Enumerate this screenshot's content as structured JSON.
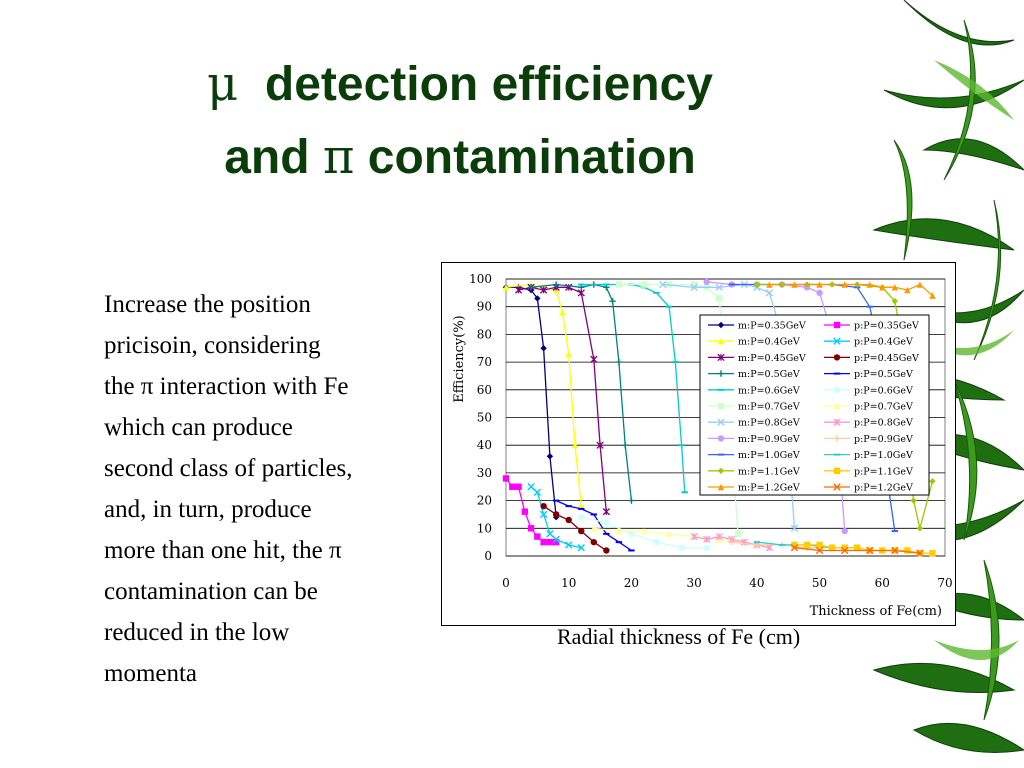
{
  "slide": {
    "title_line1_greek": "μ",
    "title_line1_text": "detection efficiency",
    "title_line2_text_a": "and",
    "title_line2_greek": "π",
    "title_line2_text_b": "contamination",
    "body_lines": [
      "Increase  the position",
      "pricisoin,  considering",
      "the π interaction with Fe",
      "which  can produce",
      "second class of particles,",
      "and, in turn,  produce",
      "more than one hit, the π",
      "contamination can be",
      "reduced  in the low",
      "momenta"
    ],
    "caption": "Radial thickness of Fe (cm)",
    "background_decoration": "bamboo-leaves"
  },
  "chart_data": {
    "type": "line",
    "title": "",
    "xlabel": "Thickness of Fe(cm)",
    "ylabel": "Efficiency(%)",
    "xlim": [
      0,
      70
    ],
    "ylim": [
      0,
      100
    ],
    "xticks": [
      "0",
      "10",
      "20",
      "30",
      "40",
      "50",
      "60",
      "70"
    ],
    "yticks": [
      "0",
      "10",
      "20",
      "30",
      "40",
      "50",
      "60",
      "70",
      "80",
      "90",
      "100"
    ],
    "grid": "horizontal",
    "legend_position": "right",
    "series": [
      {
        "name": "m:P=0.35GeV",
        "color": "#000080",
        "marker": "diamond",
        "x": [
          0,
          2,
          4,
          5,
          6,
          7,
          8
        ],
        "y": [
          97,
          97,
          96,
          93,
          75,
          36,
          14
        ]
      },
      {
        "name": "p:P=0.35GeV",
        "color": "#ff00ff",
        "marker": "square",
        "x": [
          0,
          1,
          2,
          3,
          4,
          5,
          6,
          7,
          8
        ],
        "y": [
          28,
          25,
          25,
          16,
          10,
          7,
          5,
          5,
          5
        ]
      },
      {
        "name": "m:P=0.4GeV",
        "color": "#ffff00",
        "marker": "triangle",
        "x": [
          0,
          4,
          8,
          9,
          10,
          11,
          12
        ],
        "y": [
          97,
          98,
          96,
          88,
          73,
          40,
          18
        ]
      },
      {
        "name": "p:P=0.4GeV",
        "color": "#00ccff",
        "marker": "cross",
        "x": [
          4,
          5,
          6,
          7,
          8,
          10,
          12
        ],
        "y": [
          25,
          23,
          15,
          8,
          6,
          4,
          3
        ]
      },
      {
        "name": "m:P=0.45GeV",
        "color": "#800080",
        "marker": "asterisk",
        "x": [
          2,
          4,
          6,
          8,
          10,
          12,
          14,
          15,
          16
        ],
        "y": [
          96,
          97,
          96,
          97,
          97,
          95,
          71,
          40,
          16
        ]
      },
      {
        "name": "p:P=0.45GeV",
        "color": "#800000",
        "marker": "circle",
        "x": [
          6,
          8,
          10,
          12,
          14,
          16
        ],
        "y": [
          18,
          15,
          13,
          9,
          5,
          2
        ]
      },
      {
        "name": "m:P=0.5GeV",
        "color": "#008080",
        "marker": "plus",
        "x": [
          4,
          8,
          12,
          14,
          16,
          17,
          18,
          19,
          20
        ],
        "y": [
          97,
          98,
          97,
          98,
          97,
          92,
          70,
          40,
          20
        ]
      },
      {
        "name": "p:P=0.5GeV",
        "color": "#0000ff",
        "marker": "dash",
        "x": [
          8,
          10,
          12,
          14,
          16,
          18,
          20
        ],
        "y": [
          20,
          18,
          17,
          15,
          8,
          5,
          2
        ]
      },
      {
        "name": "m:P=0.6GeV",
        "color": "#00cccc",
        "marker": "dash",
        "x": [
          12,
          16,
          20,
          22,
          24,
          26,
          27,
          28,
          28.5
        ],
        "y": [
          98,
          98,
          98,
          97,
          95,
          90,
          70,
          40,
          23
        ]
      },
      {
        "name": "p:P=0.6GeV",
        "color": "#ccffff",
        "marker": "circle",
        "x": [
          12,
          16,
          20,
          24,
          28,
          32
        ],
        "y": [
          14,
          12,
          8,
          5,
          3,
          3
        ]
      },
      {
        "name": "m:P=0.7GeV",
        "color": "#ccffcc",
        "marker": "square",
        "x": [
          18,
          22,
          26,
          30,
          32,
          34,
          35,
          36,
          37
        ],
        "y": [
          98,
          98,
          98,
          98,
          97,
          93,
          70,
          40,
          8
        ]
      },
      {
        "name": "p:P=0.7GeV",
        "color": "#ffff99",
        "marker": "triangle",
        "x": [
          14,
          18,
          22,
          26,
          30,
          34,
          38
        ],
        "y": [
          10,
          9,
          9,
          8,
          7,
          6,
          5
        ]
      },
      {
        "name": "m:P=0.8GeV",
        "color": "#99ccff",
        "marker": "cross",
        "x": [
          25,
          30,
          34,
          38,
          40,
          42,
          44,
          45,
          46
        ],
        "y": [
          98,
          97,
          97,
          98,
          97,
          95,
          80,
          40,
          10
        ]
      },
      {
        "name": "p:P=0.8GeV",
        "color": "#ff99cc",
        "marker": "asterisk",
        "x": [
          30,
          32,
          34,
          36,
          38,
          40,
          42
        ],
        "y": [
          7,
          6,
          7,
          6,
          5,
          4,
          3
        ]
      },
      {
        "name": "m:P=0.9GeV",
        "color": "#cc99ff",
        "marker": "circle",
        "x": [
          32,
          36,
          40,
          44,
          48,
          50,
          52,
          53,
          54
        ],
        "y": [
          99,
          98,
          98,
          98,
          97,
          95,
          80,
          40,
          9
        ]
      },
      {
        "name": "p:P=0.9GeV",
        "color": "#ffcc99",
        "marker": "plus",
        "x": [
          36,
          40,
          44,
          48,
          52
        ],
        "y": [
          5,
          4,
          4,
          3,
          3
        ]
      },
      {
        "name": "m:P=1.0GeV",
        "color": "#3366ff",
        "marker": "dash",
        "x": [
          36,
          40,
          44,
          48,
          52,
          56,
          58,
          59,
          60,
          62
        ],
        "y": [
          98,
          98,
          98,
          98,
          98,
          97,
          90,
          80,
          40,
          9
        ]
      },
      {
        "name": "p:P=1.0GeV",
        "color": "#33cccc",
        "marker": "dash",
        "x": [
          40,
          44,
          48,
          52,
          56
        ],
        "y": [
          5,
          4,
          4,
          3,
          3
        ]
      },
      {
        "name": "m:P=1.1GeV",
        "color": "#99cc00",
        "marker": "diamond",
        "x": [
          40,
          44,
          48,
          52,
          56,
          60,
          62,
          63,
          64,
          65,
          66,
          68
        ],
        "y": [
          98,
          98,
          98,
          98,
          98,
          97,
          92,
          80,
          40,
          20,
          10,
          27
        ]
      },
      {
        "name": "p:P=1.1GeV",
        "color": "#ffcc00",
        "marker": "square",
        "x": [
          46,
          48,
          50,
          52,
          54,
          56,
          58,
          60,
          62,
          64,
          66,
          68
        ],
        "y": [
          4,
          4,
          4,
          3,
          3,
          3,
          2,
          2,
          2,
          2,
          1,
          1
        ]
      },
      {
        "name": "m:P=1.2GeV",
        "color": "#ff9900",
        "marker": "triangle",
        "x": [
          42,
          46,
          50,
          54,
          58,
          60,
          62,
          64,
          66,
          68
        ],
        "y": [
          98,
          98,
          98,
          98,
          98,
          97,
          97,
          96,
          98,
          94
        ]
      },
      {
        "name": "p:P=1.2GeV",
        "color": "#ff6600",
        "marker": "cross",
        "x": [
          46,
          50,
          54,
          58,
          62,
          66
        ],
        "y": [
          3,
          2,
          2,
          2,
          2,
          1
        ]
      }
    ]
  }
}
